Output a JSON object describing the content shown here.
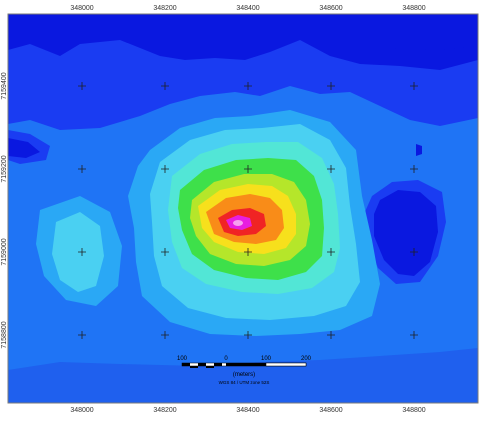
{
  "map": {
    "x_ticks": [
      "348000",
      "348200",
      "348400",
      "348600",
      "348800"
    ],
    "y_ticks": [
      "7159400",
      "7159200",
      "7159000",
      "7158800"
    ],
    "scale_bar": {
      "labels": [
        "100",
        "0",
        "100",
        "200"
      ],
      "unit": "(meters)",
      "projection": "WGS 84 / UTM zone 52S"
    },
    "colors": {
      "lowest": "#0a18e0",
      "low": "#1a3cf2",
      "mid_low": "#1f74f5",
      "mid": "#2aa8f5",
      "light": "#4ad0f2",
      "cyan": "#52e6d6",
      "green": "#3ee04a",
      "yellow_green": "#b5e62a",
      "yellow": "#f7e01c",
      "orange": "#f98c18",
      "red": "#f02424",
      "peak": "#e81ee0"
    }
  }
}
